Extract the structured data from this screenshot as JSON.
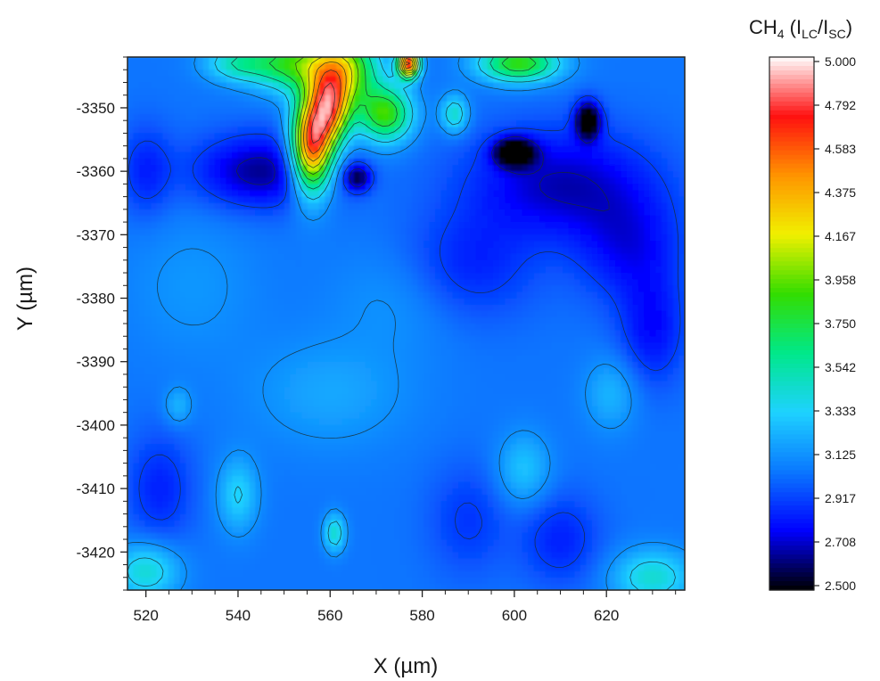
{
  "chart_data": {
    "type": "heatmap",
    "subtype": "contour",
    "xlabel": "X (µm)",
    "ylabel": "Y (µm)",
    "xlim": [
      516,
      637
    ],
    "ylim": [
      -3426,
      -3342
    ],
    "xticks": [
      520,
      540,
      560,
      580,
      600,
      620
    ],
    "yticks": [
      -3350,
      -3360,
      -3370,
      -3380,
      -3390,
      -3400,
      -3410,
      -3420
    ],
    "colorbar": {
      "title_main": "CH",
      "title_sub1": "4",
      "title_open": " (I",
      "title_sub2": "LC",
      "title_mid": "/I",
      "title_sub3": "SC",
      "title_close": ")",
      "min": 2.5,
      "max": 5.0,
      "tick_labels": [
        "5.000",
        "4.792",
        "4.583",
        "4.375",
        "4.167",
        "3.958",
        "3.750",
        "3.542",
        "3.333",
        "3.125",
        "2.917",
        "2.708",
        "2.500"
      ],
      "colors": [
        "#000000",
        "#0000ff",
        "#0a78ff",
        "#1ed2ff",
        "#00e88a",
        "#33dd00",
        "#f0f000",
        "#ff9400",
        "#ff1010",
        "#ffffff"
      ]
    },
    "baseline": 3.05,
    "features": [
      {
        "x": 556,
        "y": -3356,
        "value": 4.7,
        "sx": 3,
        "sy": 5
      },
      {
        "x": 560,
        "y": -3350,
        "value": 4.3,
        "sx": 3,
        "sy": 4
      },
      {
        "x": 563,
        "y": -3344,
        "value": 4.0,
        "sx": 5,
        "sy": 4
      },
      {
        "x": 552,
        "y": -3343,
        "value": 3.8,
        "sx": 6,
        "sy": 3
      },
      {
        "x": 540,
        "y": -3343,
        "value": 3.5,
        "sx": 5,
        "sy": 2
      },
      {
        "x": 572,
        "y": -3351,
        "value": 3.9,
        "sx": 4,
        "sy": 3
      },
      {
        "x": 577,
        "y": -3343,
        "value": 4.95,
        "sx": 1.5,
        "sy": 1.5
      },
      {
        "x": 601,
        "y": -3343,
        "value": 3.9,
        "sx": 6,
        "sy": 2
      },
      {
        "x": 587,
        "y": -3351,
        "value": 3.5,
        "sx": 2,
        "sy": 2
      },
      {
        "x": 600,
        "y": -3357,
        "value": 2.3,
        "sx": 3,
        "sy": 1.5
      },
      {
        "x": 616,
        "y": -3352,
        "value": 2.3,
        "sx": 1.8,
        "sy": 2
      },
      {
        "x": 566,
        "y": -3361,
        "value": 2.55,
        "sx": 2,
        "sy": 1.5
      },
      {
        "x": 545,
        "y": -3360,
        "value": 2.65,
        "sx": 10,
        "sy": 4
      },
      {
        "x": 610,
        "y": -3362,
        "value": 2.7,
        "sx": 14,
        "sy": 6
      },
      {
        "x": 625,
        "y": -3372,
        "value": 2.8,
        "sx": 8,
        "sy": 6
      },
      {
        "x": 630,
        "y": -3385,
        "value": 2.8,
        "sx": 5,
        "sy": 6
      },
      {
        "x": 590,
        "y": -3375,
        "value": 2.85,
        "sx": 10,
        "sy": 6
      },
      {
        "x": 560,
        "y": -3395,
        "value": 3.2,
        "sx": 12,
        "sy": 6
      },
      {
        "x": 540,
        "y": -3411,
        "value": 3.35,
        "sx": 3,
        "sy": 4
      },
      {
        "x": 561,
        "y": -3417,
        "value": 3.5,
        "sx": 1.5,
        "sy": 2
      },
      {
        "x": 602,
        "y": -3407,
        "value": 3.3,
        "sx": 4,
        "sy": 4
      },
      {
        "x": 621,
        "y": -3395,
        "value": 3.25,
        "sx": 4,
        "sy": 4
      },
      {
        "x": 520,
        "y": -3423,
        "value": 3.45,
        "sx": 5,
        "sy": 3
      },
      {
        "x": 630,
        "y": -3424,
        "value": 3.45,
        "sx": 6,
        "sy": 3
      },
      {
        "x": 523,
        "y": -3410,
        "value": 2.85,
        "sx": 5,
        "sy": 6
      },
      {
        "x": 610,
        "y": -3418,
        "value": 2.85,
        "sx": 6,
        "sy": 5
      },
      {
        "x": 590,
        "y": -3415,
        "value": 2.9,
        "sx": 6,
        "sy": 6
      },
      {
        "x": 527,
        "y": -3397,
        "value": 3.25,
        "sx": 2,
        "sy": 2
      },
      {
        "x": 575,
        "y": -3380,
        "value": 3.15,
        "sx": 10,
        "sy": 6
      },
      {
        "x": 530,
        "y": -3378,
        "value": 3.15,
        "sx": 10,
        "sy": 8
      },
      {
        "x": 520,
        "y": -3360,
        "value": 2.85,
        "sx": 4,
        "sy": 5
      }
    ]
  }
}
